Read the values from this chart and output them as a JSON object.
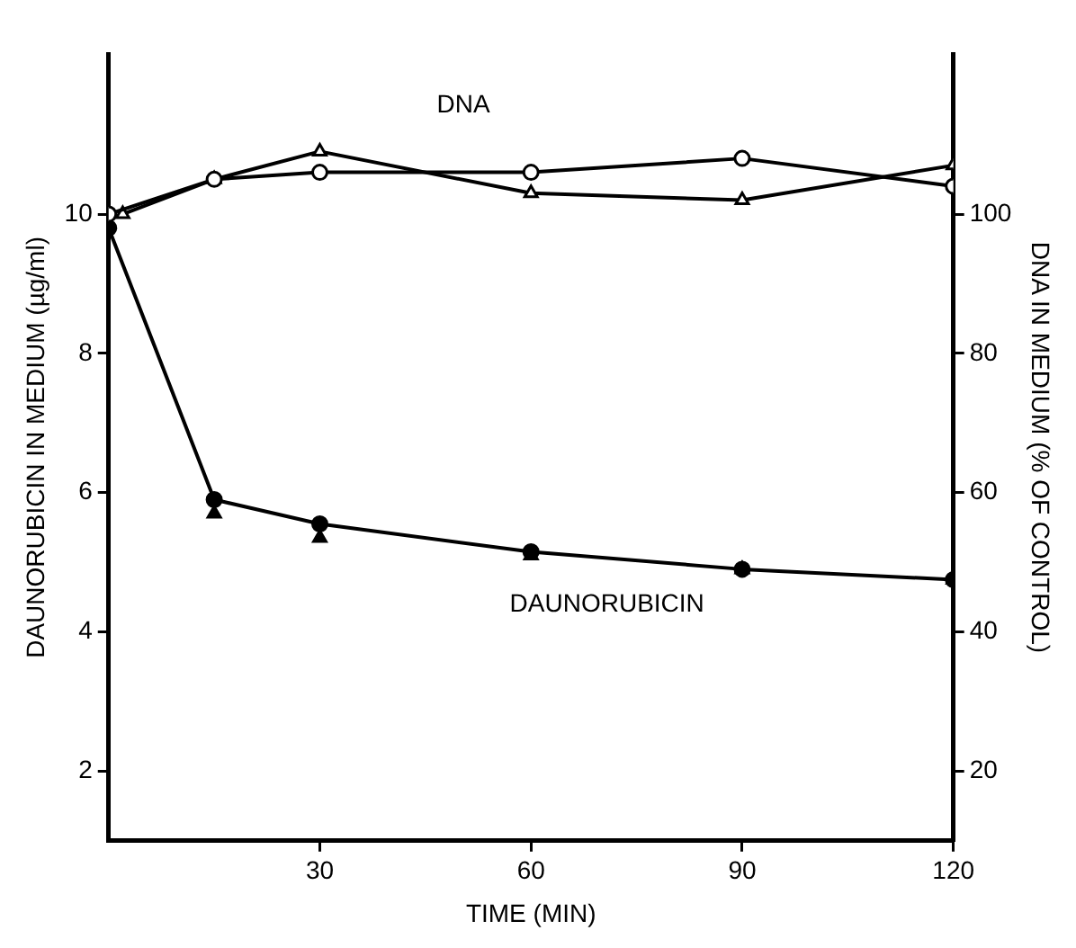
{
  "chart_data": {
    "type": "line",
    "xlabel": "TIME (MIN)",
    "ylabel": "DAUNORUBICIN IN MEDIUM (µg/ml)",
    "y2label": "DNA IN MEDIUM (% OF CONTROL)",
    "xlim": [
      0,
      120
    ],
    "xticks": [
      30,
      60,
      90,
      120
    ],
    "ylim": [
      1,
      12.3
    ],
    "yticks": [
      2,
      4,
      6,
      8,
      10
    ],
    "y2lim": [
      10,
      123
    ],
    "y2ticks": [
      20,
      40,
      60,
      80,
      100
    ],
    "grid": false,
    "legend": false,
    "series": [
      {
        "type": "line",
        "marker": "circle",
        "color": "#000000",
        "axis": "y2",
        "x": [
          0,
          15,
          30,
          60,
          90,
          120
        ],
        "values": [
          100,
          105,
          106,
          106,
          108,
          104
        ]
      },
      {
        "type": "line",
        "marker": "triangle",
        "color": "#000000",
        "axis": "y2",
        "x": [
          2,
          15,
          30,
          60,
          90,
          120
        ],
        "values": [
          100,
          105,
          109,
          103,
          102,
          107
        ]
      },
      {
        "type": "line",
        "marker": "circle",
        "color": "#000000",
        "x": [
          0,
          15,
          30,
          60,
          90,
          120
        ],
        "values": [
          9.8,
          5.9,
          5.55,
          5.15,
          4.9,
          4.75
        ]
      },
      {
        "type": "scatter",
        "marker": "triangle",
        "color": "#000000",
        "x": [
          15,
          30,
          60,
          90,
          120
        ],
        "values": [
          5.7,
          5.35,
          5.1,
          4.9,
          4.75
        ]
      }
    ],
    "annotations": [
      "DNA",
      "DAUNORUBICIN"
    ]
  }
}
